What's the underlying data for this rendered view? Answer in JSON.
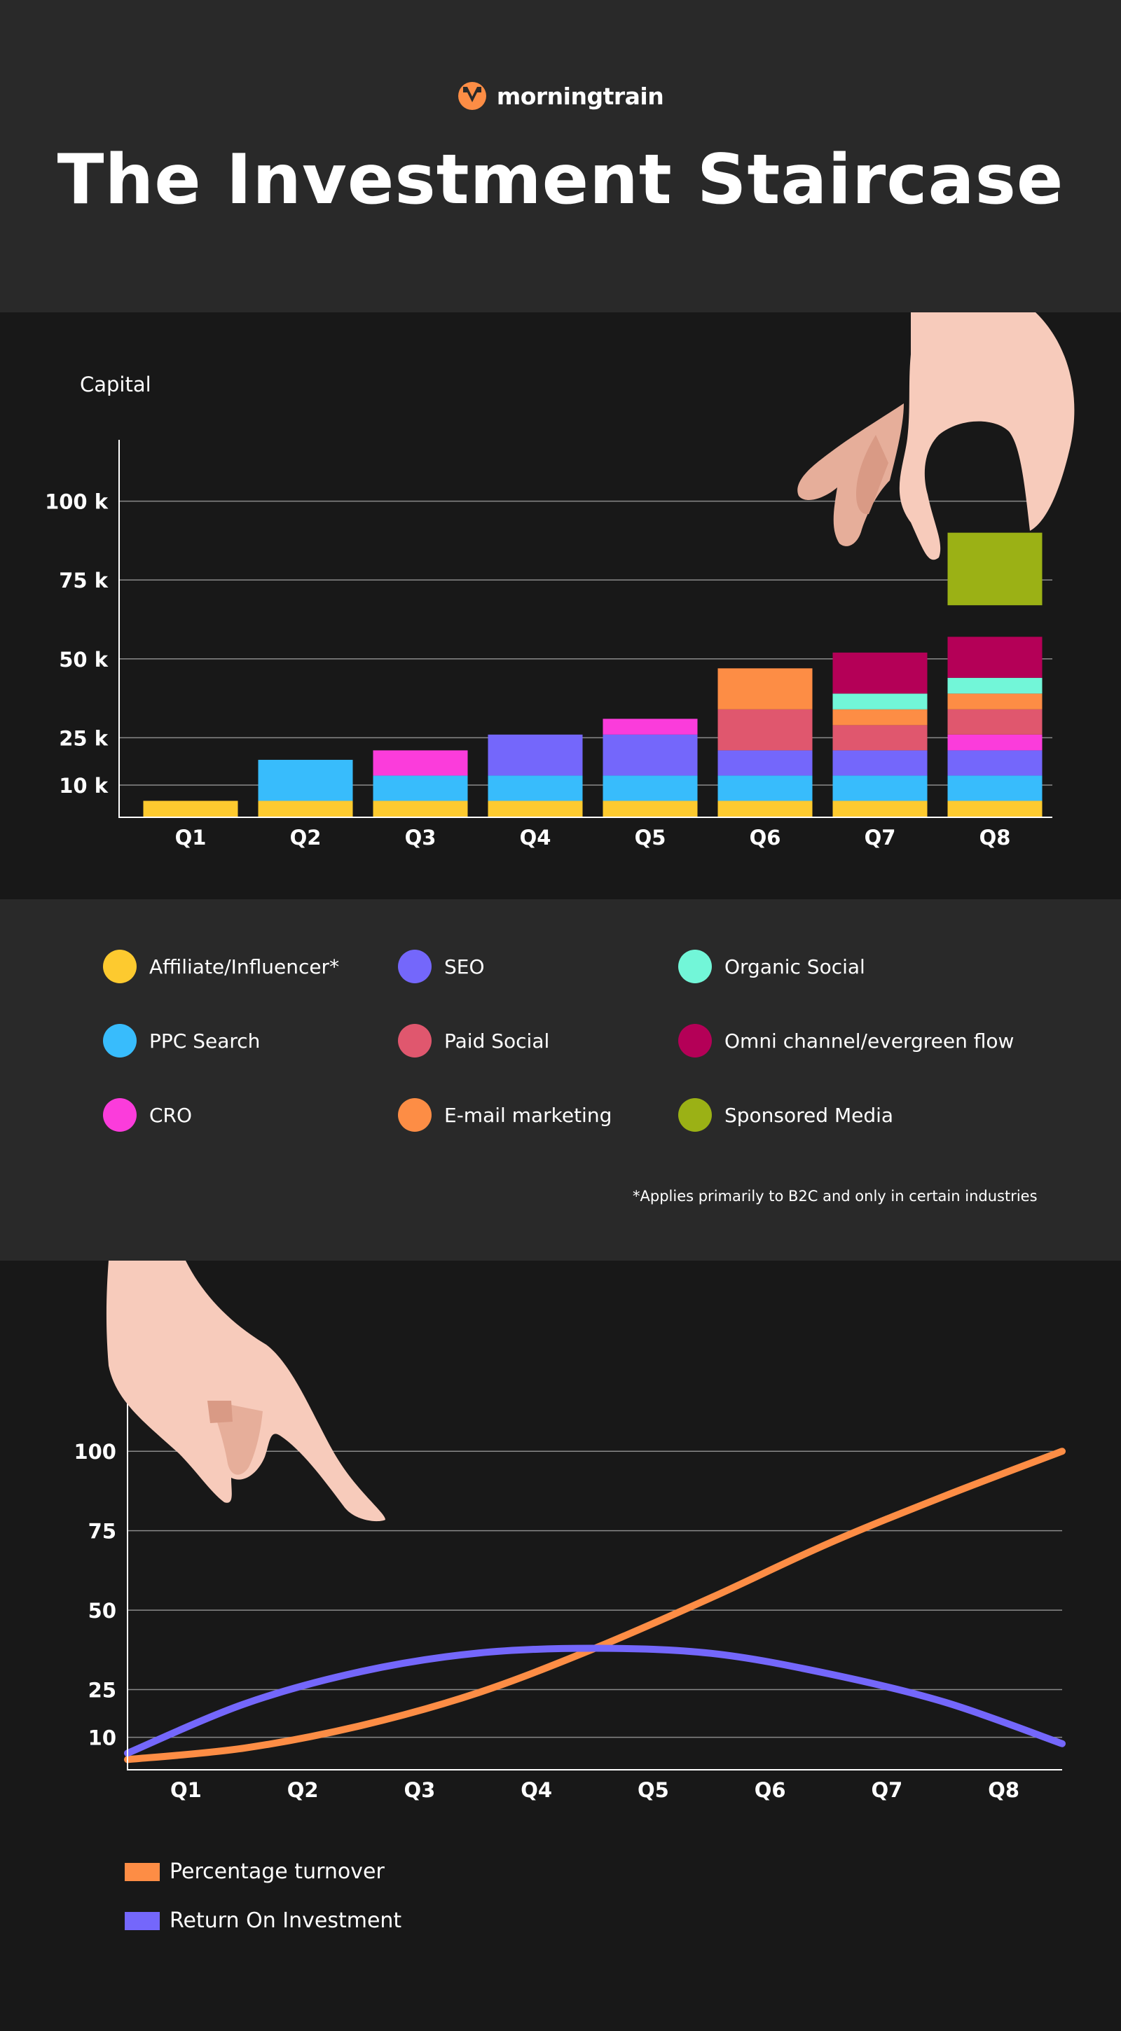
{
  "brand": {
    "name": "morningtrain"
  },
  "title": "The Investment Staircase",
  "colors": {
    "affiliate": "#FDCA2F",
    "ppc": "#38BCFC",
    "cro": "#FB3CDB",
    "seo": "#7467FB",
    "paid_social": "#E0576E",
    "email": "#FD8D45",
    "organic": "#72F6D8",
    "omni": "#B40057",
    "sponsored": "#9BB115"
  },
  "legend": {
    "items": [
      {
        "label": "Affiliate/Influencer*",
        "color": "#FDCA2F"
      },
      {
        "label": "SEO",
        "color": "#7467FB"
      },
      {
        "label": "Organic Social",
        "color": "#72F6D8"
      },
      {
        "label": "PPC Search",
        "color": "#38BCFC"
      },
      {
        "label": "Paid Social",
        "color": "#E0576E"
      },
      {
        "label": "Omni channel/evergreen flow",
        "color": "#B40057"
      },
      {
        "label": "CRO",
        "color": "#FB3CDB"
      },
      {
        "label": "E-mail marketing",
        "color": "#FD8D45"
      },
      {
        "label": "Sponsored Media",
        "color": "#9BB115"
      }
    ],
    "footnote": "*Applies primarily to B2C and only in certain industries"
  },
  "chart_data": [
    {
      "type": "bar",
      "stacked": true,
      "title": "Capital",
      "ylabel": "Capital",
      "categories": [
        "Q1",
        "Q2",
        "Q3",
        "Q4",
        "Q5",
        "Q6",
        "Q7",
        "Q8"
      ],
      "y_ticks": [
        {
          "value": 10,
          "label": "10 k"
        },
        {
          "value": 25,
          "label": "25 k"
        },
        {
          "value": 50,
          "label": "50 k"
        },
        {
          "value": 75,
          "label": "75 k"
        },
        {
          "value": 100,
          "label": "100 k"
        }
      ],
      "ylim": [
        0,
        115
      ],
      "series": [
        {
          "name": "Affiliate/Influencer*",
          "color": "#FDCA2F",
          "values": [
            5,
            5,
            5,
            5,
            5,
            5,
            5,
            5
          ]
        },
        {
          "name": "PPC Search",
          "color": "#38BCFC",
          "values": [
            0,
            13,
            8,
            8,
            8,
            8,
            8,
            8
          ]
        },
        {
          "name": "SEO",
          "color": "#7467FB",
          "values": [
            0,
            0,
            0,
            13,
            13,
            8,
            8,
            8
          ]
        },
        {
          "name": "CRO",
          "color": "#FB3CDB",
          "values": [
            0,
            0,
            8,
            0,
            5,
            0,
            0,
            5
          ]
        },
        {
          "name": "Paid Social",
          "color": "#E0576E",
          "values": [
            0,
            0,
            0,
            0,
            0,
            13,
            8,
            8
          ]
        },
        {
          "name": "E-mail marketing",
          "color": "#FD8D45",
          "values": [
            0,
            0,
            0,
            0,
            0,
            13,
            5,
            5
          ]
        },
        {
          "name": "Organic Social",
          "color": "#72F6D8",
          "values": [
            0,
            0,
            0,
            0,
            0,
            0,
            5,
            5
          ]
        },
        {
          "name": "Omni channel/evergreen flow",
          "color": "#B40057",
          "values": [
            0,
            0,
            0,
            0,
            0,
            0,
            13,
            13
          ]
        }
      ],
      "floating_block": {
        "name": "Sponsored Media",
        "category": "Q8",
        "from": 67,
        "to": 90,
        "color": "#9BB115"
      }
    },
    {
      "type": "line",
      "categories": [
        "Q1",
        "Q2",
        "Q3",
        "Q4",
        "Q5",
        "Q6",
        "Q7",
        "Q8"
      ],
      "y_ticks": [
        10,
        25,
        50,
        75,
        100
      ],
      "ylim": [
        0,
        115
      ],
      "series": [
        {
          "name": "Percentage turnover",
          "color": "#FD8D45",
          "x": [
            0,
            1,
            2,
            3,
            4,
            5,
            6,
            7,
            8
          ],
          "values": [
            3,
            6.6,
            13.7,
            24,
            38,
            54,
            71,
            86,
            100
          ]
        },
        {
          "name": "Return On Investment",
          "color": "#7467FB",
          "x": [
            0,
            1,
            2,
            3,
            4,
            5,
            6,
            7,
            8
          ],
          "values": [
            5,
            20.5,
            30.7,
            36.5,
            38,
            36.4,
            30,
            21,
            8
          ]
        }
      ],
      "legend": [
        "Percentage turnover",
        "Return On Investment"
      ]
    }
  ]
}
